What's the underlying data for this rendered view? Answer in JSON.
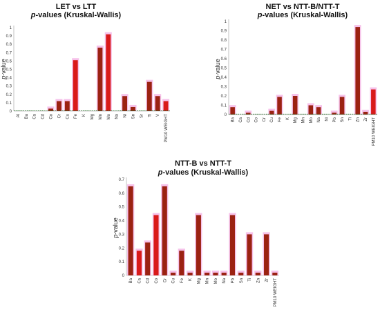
{
  "charts": [
    {
      "type": "bar",
      "title_line1": "LET vs LTT",
      "title_line2_italic": "p",
      "title_line2_rest": "-values (Kruskal-Wallis)",
      "ylabel_italic": "p",
      "ylabel_rest": "-value",
      "ylim": [
        0,
        1
      ],
      "ticks": [
        "0",
        "0.1",
        "0.2",
        "0.3",
        "0.4",
        "0.5",
        "0.6",
        "0.7",
        "0.8",
        "0.9",
        "1"
      ],
      "categories": [
        "Al",
        "Ba",
        "Ca",
        "Cd",
        "Co",
        "Cr",
        "Cu",
        "Fe",
        "K",
        "Mg",
        "Mn",
        "Mo",
        "Na",
        "Ni",
        "Sn",
        "Sr",
        "Ti",
        "V",
        "PM10 WEIGHT"
      ],
      "values": [
        0.0,
        0.0,
        0.0,
        0.0,
        0.03,
        0.12,
        0.12,
        0.61,
        0.0,
        0.0,
        0.76,
        0.92,
        0.0,
        0.18,
        0.05,
        0.0,
        0.35,
        0.18,
        0.12
      ],
      "colors": [
        "#9b2212",
        "#9b2212",
        "#9b2212",
        "#9b2212",
        "#9b2212",
        "#9b2212",
        "#9b2212",
        "#d91a1a",
        "#9b2212",
        "#9b2212",
        "#9b2212",
        "#d91a1a",
        "#9b2212",
        "#9b2212",
        "#9b2212",
        "#9b2212",
        "#9b2212",
        "#9b2212",
        "#d91a1a"
      ],
      "threshold": 0.005
    },
    {
      "type": "bar",
      "title_line1": "NET vs NTT-B/NTT-T",
      "title_line2_italic": "p",
      "title_line2_rest": "-values (Kruskal-Wallis)",
      "ylabel_italic": "p",
      "ylabel_rest": "-value",
      "ylim": [
        0,
        1
      ],
      "ticks": [
        "0",
        "0.1",
        "0.2",
        "0.3",
        "0.4",
        "0.5",
        "0.6",
        "0.7",
        "0.8",
        "0.9",
        "1"
      ],
      "categories": [
        "Ba",
        "Ca",
        "Cd",
        "Co",
        "Cr",
        "Cu",
        "Fe",
        "K",
        "Mg",
        "Mn",
        "Mo",
        "Na",
        "Ni",
        "Pb",
        "Sn",
        "Ti",
        "Zn",
        "Zr",
        "PM10 WEIGHT"
      ],
      "values": [
        0.08,
        0.0,
        0.02,
        0.0,
        0.0,
        0.04,
        0.19,
        0.0,
        0.2,
        0.0,
        0.1,
        0.08,
        0.0,
        0.02,
        0.19,
        0.0,
        0.94,
        0.03,
        0.27
      ],
      "colors": [
        "#9b2212",
        "#9b2212",
        "#9b2212",
        "#9b2212",
        "#9b2212",
        "#9b2212",
        "#9b2212",
        "#9b2212",
        "#9b2212",
        "#9b2212",
        "#9b2212",
        "#9b2212",
        "#9b2212",
        "#9b2212",
        "#9b2212",
        "#9b2212",
        "#9b2212",
        "#9b2212",
        "#d91a1a"
      ],
      "threshold": 0.005
    },
    {
      "type": "bar",
      "title_line1": "NTT-B vs NTT-T",
      "title_line2_italic": "p",
      "title_line2_rest": "-values (Kruskal-Wallis)",
      "ylabel_italic": "p",
      "ylabel_rest": "-value",
      "ylim": [
        0,
        0.7
      ],
      "ticks": [
        "0",
        "0.1",
        "0.2",
        "0.3",
        "0.4",
        "0.5",
        "0.6",
        "0.7"
      ],
      "categories": [
        "Ba",
        "Ca",
        "Cd",
        "Co",
        "Cr",
        "Cu",
        "Fe",
        "K",
        "Mg",
        "Mn",
        "Mo",
        "Na",
        "Pb",
        "Sn",
        "Ti",
        "Zn",
        "Zr",
        "PM10 WEIGHT"
      ],
      "values": [
        0.65,
        0.18,
        0.24,
        0.44,
        0.65,
        0.02,
        0.18,
        0.02,
        0.44,
        0.02,
        0.02,
        0.02,
        0.44,
        0.02,
        0.3,
        0.02,
        0.3,
        0.02
      ],
      "colors": [
        "#9b2212",
        "#d91a1a",
        "#9b2212",
        "#d91a1a",
        "#9b2212",
        "#9b2212",
        "#9b2212",
        "#9b2212",
        "#9b2212",
        "#9b2212",
        "#9b2212",
        "#9b2212",
        "#9b2212",
        "#9b2212",
        "#9b2212",
        "#9b2212",
        "#9b2212",
        "#9b2212"
      ],
      "threshold": 0
    }
  ],
  "style": {
    "glow_color": "#f4b7e6",
    "axis_color": "#9a9a9a",
    "threshold_color": "#1f6b1f"
  }
}
